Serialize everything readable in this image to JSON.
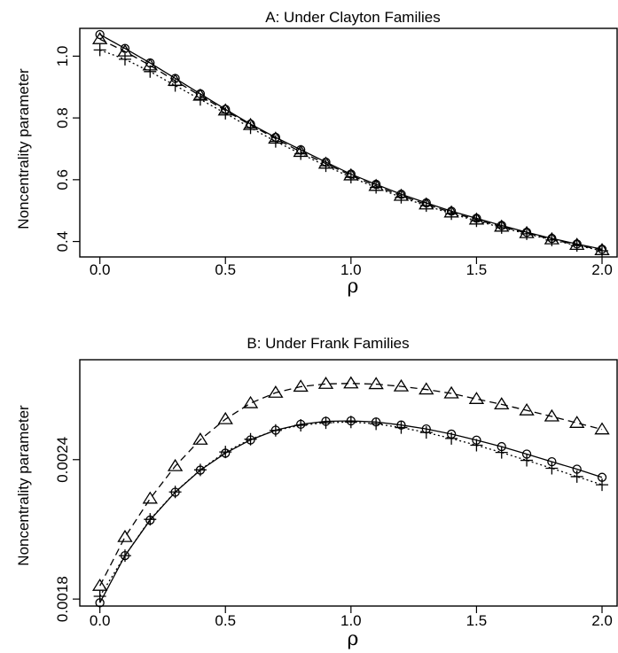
{
  "chart_data": [
    {
      "type": "line",
      "title": "A: Under Clayton Families",
      "xlabel": "ρ",
      "ylabel": "Noncentrality parameter",
      "xlim": [
        -0.08,
        2.06
      ],
      "ylim": [
        0.35,
        1.09
      ],
      "xticks": [
        0.0,
        0.5,
        1.0,
        1.5,
        2.0
      ],
      "xtick_labels": [
        "0.0",
        "0.5",
        "1.0",
        "1.5",
        "2.0"
      ],
      "yticks": [
        0.4,
        0.6,
        0.8,
        1.0
      ],
      "ytick_labels": [
        "0.4",
        "0.6",
        "0.8",
        "1.0"
      ],
      "grid": false,
      "x": [
        0.0,
        0.1,
        0.2,
        0.3,
        0.4,
        0.5,
        0.6,
        0.7,
        0.8,
        0.9,
        1.0,
        1.1,
        1.2,
        1.3,
        1.4,
        1.5,
        1.6,
        1.7,
        1.8,
        1.9,
        2.0
      ],
      "series": [
        {
          "marker": "circle",
          "line_style": "solid",
          "values": [
            1.07,
            1.025,
            0.978,
            0.928,
            0.878,
            0.828,
            0.78,
            0.737,
            0.697,
            0.657,
            0.618,
            0.585,
            0.553,
            0.525,
            0.498,
            0.475,
            0.452,
            0.43,
            0.41,
            0.392,
            0.375
          ]
        },
        {
          "marker": "triangle",
          "line_style": "dashed",
          "values": [
            1.055,
            1.015,
            0.97,
            0.92,
            0.872,
            0.824,
            0.777,
            0.733,
            0.69,
            0.652,
            0.614,
            0.58,
            0.548,
            0.52,
            0.494,
            0.471,
            0.448,
            0.427,
            0.407,
            0.389,
            0.372
          ]
        },
        {
          "marker": "plus",
          "line_style": "dotted",
          "values": [
            1.02,
            0.99,
            0.95,
            0.905,
            0.86,
            0.815,
            0.768,
            0.724,
            0.684,
            0.645,
            0.608,
            0.575,
            0.543,
            0.516,
            0.49,
            0.467,
            0.445,
            0.425,
            0.405,
            0.387,
            0.37
          ]
        }
      ]
    },
    {
      "type": "line",
      "title": "B: Under Frank Families",
      "xlabel": "ρ",
      "ylabel": "Noncentrality parameter",
      "xlim": [
        -0.08,
        2.06
      ],
      "ylim": [
        0.00177,
        0.00283
      ],
      "xticks": [
        0.0,
        0.5,
        1.0,
        1.5,
        2.0
      ],
      "xtick_labels": [
        "0.0",
        "0.5",
        "1.0",
        "1.5",
        "2.0"
      ],
      "yticks": [
        0.0018,
        0.0024
      ],
      "ytick_labels": [
        "0.0018",
        "0.0024"
      ],
      "grid": false,
      "x": [
        0.0,
        0.1,
        0.2,
        0.3,
        0.4,
        0.5,
        0.6,
        0.7,
        0.8,
        0.9,
        1.0,
        1.1,
        1.2,
        1.3,
        1.4,
        1.5,
        1.6,
        1.7,
        1.8,
        1.9,
        2.0
      ],
      "series": [
        {
          "marker": "circle",
          "line_style": "solid",
          "values": [
            0.001784,
            0.001987,
            0.00214,
            0.00226,
            0.002355,
            0.002428,
            0.002485,
            0.002527,
            0.002552,
            0.002565,
            0.002567,
            0.002562,
            0.002549,
            0.002532,
            0.00251,
            0.002484,
            0.002456,
            0.002424,
            0.002391,
            0.002359,
            0.002324
          ]
        },
        {
          "marker": "triangle",
          "line_style": "dashed",
          "values": [
            0.001857,
            0.002067,
            0.002232,
            0.002372,
            0.002486,
            0.002574,
            0.002643,
            0.002688,
            0.002714,
            0.002726,
            0.002728,
            0.002725,
            0.002715,
            0.002702,
            0.002685,
            0.002661,
            0.002638,
            0.002612,
            0.002586,
            0.002558,
            0.00253
          ]
        },
        {
          "marker": "plus",
          "line_style": "dotted",
          "values": [
            0.001812,
            0.001987,
            0.002143,
            0.002261,
            0.002356,
            0.002433,
            0.002488,
            0.002526,
            0.002548,
            0.002559,
            0.002562,
            0.002554,
            0.002538,
            0.002517,
            0.002491,
            0.002462,
            0.002431,
            0.002397,
            0.002363,
            0.002327,
            0.002292
          ]
        }
      ]
    }
  ]
}
